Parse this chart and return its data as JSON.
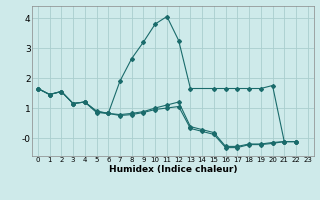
{
  "xlabel": "Humidex (Indice chaleur)",
  "bg_color": "#ceeaea",
  "grid_color": "#aacece",
  "line_color": "#1a6b6b",
  "xlim": [
    -0.5,
    23.5
  ],
  "ylim": [
    -0.6,
    4.4
  ],
  "yticks": [
    0,
    1,
    2,
    3,
    4
  ],
  "ytick_labels": [
    "-0",
    "1",
    "2",
    "3",
    "4"
  ],
  "xtick_labels": [
    "0",
    "1",
    "2",
    "3",
    "4",
    "5",
    "6",
    "7",
    "8",
    "9",
    "10",
    "11",
    "12",
    "13",
    "14",
    "15",
    "16",
    "17",
    "18",
    "19",
    "20",
    "21",
    "22",
    "23"
  ],
  "series": [
    {
      "x": [
        0,
        1,
        2,
        3,
        4,
        5,
        6,
        7,
        8,
        9,
        10,
        11,
        12,
        13,
        15,
        16,
        17,
        18,
        19,
        20,
        21,
        22
      ],
      "y": [
        1.65,
        1.45,
        1.55,
        1.15,
        1.2,
        0.85,
        0.82,
        1.9,
        2.65,
        3.2,
        3.8,
        4.05,
        3.25,
        1.65,
        1.65,
        1.65,
        1.65,
        1.65,
        1.65,
        1.75,
        -0.12,
        -0.12
      ]
    },
    {
      "x": [
        0,
        1,
        2,
        3,
        4,
        5,
        6,
        7,
        8,
        9,
        10,
        11,
        12,
        13,
        14,
        15,
        16,
        17,
        18,
        19,
        20,
        21,
        22
      ],
      "y": [
        1.65,
        1.45,
        1.55,
        1.15,
        1.2,
        0.88,
        0.82,
        0.78,
        0.82,
        0.88,
        1.0,
        1.1,
        1.2,
        0.38,
        0.28,
        0.18,
        -0.28,
        -0.28,
        -0.2,
        -0.2,
        -0.15,
        -0.12,
        -0.12
      ]
    },
    {
      "x": [
        0,
        1,
        2,
        3,
        4,
        5,
        6,
        7,
        8,
        9,
        10,
        11,
        12,
        13,
        14,
        15,
        16,
        17,
        18,
        19,
        20,
        21,
        22
      ],
      "y": [
        1.65,
        1.45,
        1.55,
        1.15,
        1.2,
        0.9,
        0.82,
        0.75,
        0.78,
        0.85,
        0.95,
        1.0,
        1.05,
        0.32,
        0.22,
        0.12,
        -0.32,
        -0.32,
        -0.22,
        -0.22,
        -0.18,
        -0.12,
        -0.12
      ]
    }
  ]
}
